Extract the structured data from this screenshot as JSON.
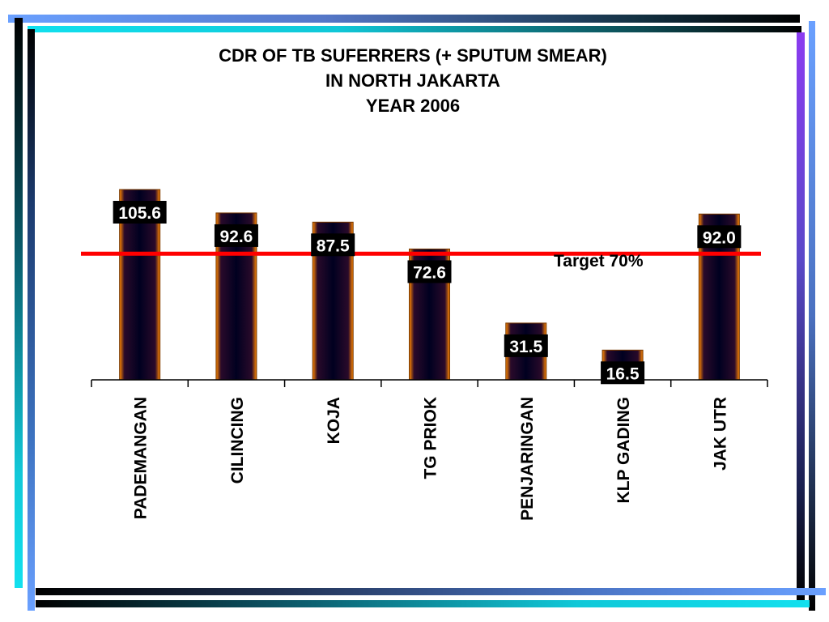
{
  "chart_data": {
    "type": "bar",
    "title": "CDR OF TB SUFERRERS (+ SPUTUM SMEAR)",
    "subtitle_lines": [
      "IN NORTH JAKARTA",
      "YEAR 2006"
    ],
    "categories": [
      "PADEMANGAN",
      "CILINCING",
      "KOJA",
      "TG PRIOK",
      "PENJARINGAN",
      "KLP GADING",
      "JAK UTR"
    ],
    "values": [
      105.6,
      92.6,
      87.5,
      72.6,
      31.5,
      16.5,
      92.0
    ],
    "value_labels": [
      "105.6",
      "92.6",
      "87.5",
      "72.6",
      "31.5",
      "16.5",
      "92.0"
    ],
    "target_line": {
      "value": 70,
      "label": "Target 70%",
      "color": "#ff0000"
    },
    "ylim": [
      0,
      105.6
    ],
    "xlabel": "",
    "ylabel": "",
    "grid": false,
    "legend": "none",
    "bar_fill": [
      "#ff8800",
      "#2a0a2a",
      "#000020"
    ]
  }
}
